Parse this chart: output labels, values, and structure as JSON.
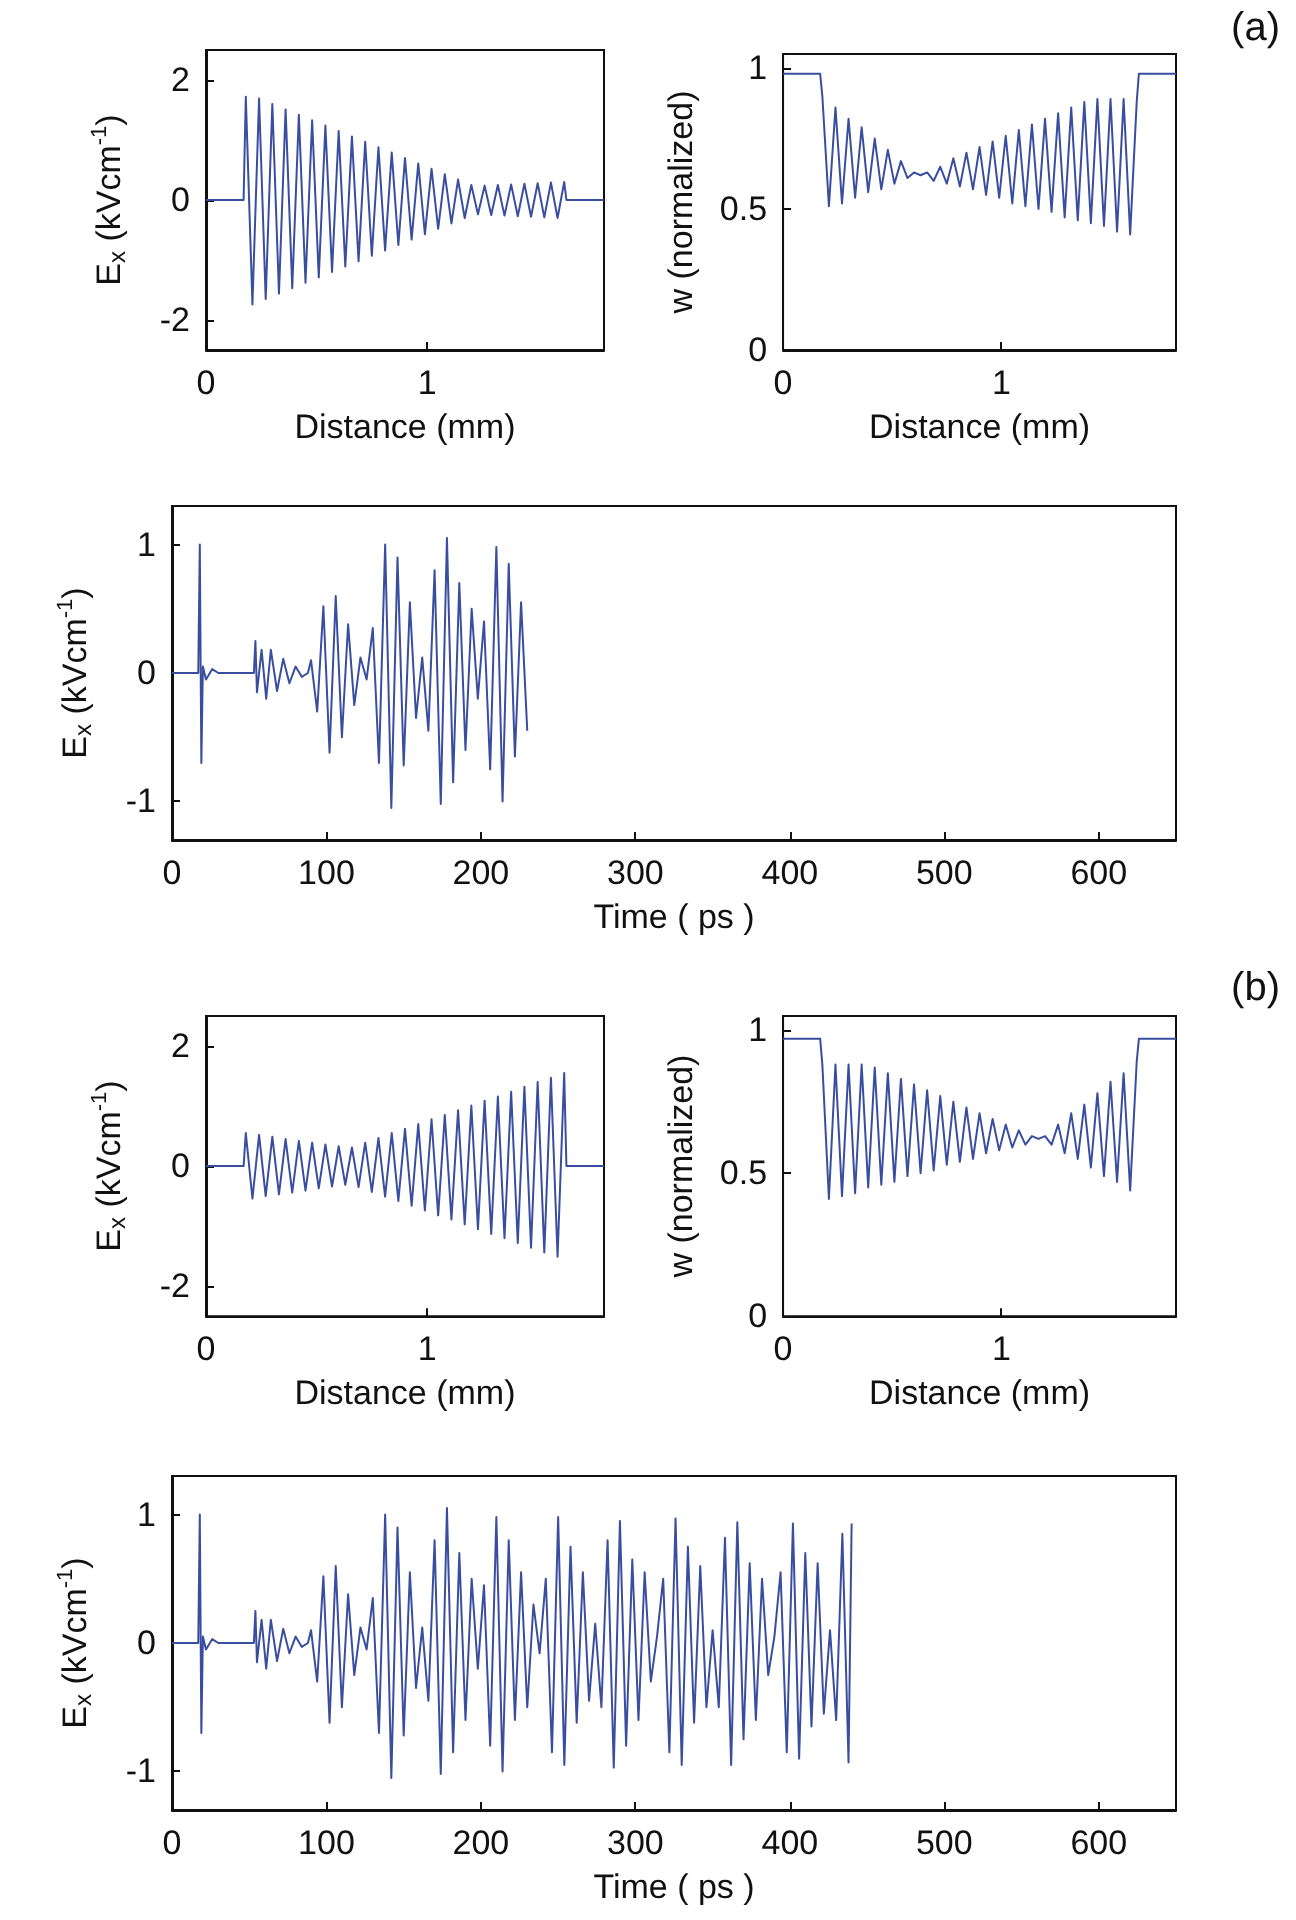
{
  "chart_data": [
    {
      "type": "line",
      "xlabel": "Distance (mm)",
      "ylabel": "E$_{x}$ (kVcm$^{-1}$)",
      "xlim": [
        0,
        1.8
      ],
      "xticks": [
        0,
        1
      ],
      "ylim": [
        -2.5,
        2.5
      ],
      "yticks": [
        -2,
        0,
        2
      ],
      "marker": "none",
      "x": [
        0,
        0.17,
        0.18,
        0.21,
        0.24,
        0.27,
        0.3,
        0.33,
        0.36,
        0.39,
        0.42,
        0.45,
        0.48,
        0.51,
        0.54,
        0.57,
        0.6,
        0.63,
        0.66,
        0.69,
        0.72,
        0.75,
        0.78,
        0.81,
        0.84,
        0.87,
        0.9,
        0.93,
        0.96,
        0.99,
        1.02,
        1.05,
        1.08,
        1.11,
        1.14,
        1.17,
        1.2,
        1.23,
        1.26,
        1.29,
        1.32,
        1.35,
        1.38,
        1.41,
        1.44,
        1.47,
        1.5,
        1.53,
        1.56,
        1.59,
        1.62,
        1.63,
        1.8
      ],
      "series": [
        {
          "color": "#3a4ea0",
          "values": [
            0,
            0,
            1.72,
            -1.74,
            1.69,
            -1.65,
            1.6,
            -1.56,
            1.51,
            -1.47,
            1.42,
            -1.38,
            1.33,
            -1.29,
            1.24,
            -1.2,
            1.15,
            -1.11,
            1.06,
            -1.02,
            0.97,
            -0.93,
            0.88,
            -0.84,
            0.79,
            -0.75,
            0.7,
            -0.66,
            0.61,
            -0.57,
            0.52,
            -0.48,
            0.43,
            -0.39,
            0.34,
            -0.3,
            0.25,
            -0.24,
            0.24,
            -0.25,
            0.25,
            -0.26,
            0.26,
            -0.27,
            0.27,
            -0.28,
            0.28,
            -0.29,
            0.29,
            -0.3,
            0.3,
            0,
            0
          ]
        }
      ]
    },
    {
      "type": "line",
      "xlabel": "Distance (mm)",
      "ylabel": "w (normalized)",
      "xlim": [
        0,
        1.8
      ],
      "xticks": [
        0,
        1
      ],
      "ylim": [
        0,
        1.05
      ],
      "yticks": [
        0,
        0.5,
        1
      ],
      "marker": "none",
      "annotations": [
        "(a)"
      ],
      "x": [
        0,
        0.17,
        0.18,
        0.21,
        0.24,
        0.27,
        0.3,
        0.33,
        0.36,
        0.39,
        0.42,
        0.45,
        0.48,
        0.51,
        0.54,
        0.57,
        0.6,
        0.63,
        0.66,
        0.69,
        0.72,
        0.75,
        0.78,
        0.81,
        0.84,
        0.87,
        0.9,
        0.93,
        0.96,
        0.99,
        1.02,
        1.05,
        1.08,
        1.11,
        1.14,
        1.17,
        1.2,
        1.23,
        1.26,
        1.29,
        1.32,
        1.35,
        1.38,
        1.41,
        1.44,
        1.47,
        1.5,
        1.53,
        1.56,
        1.59,
        1.62,
        1.63,
        1.8
      ],
      "series": [
        {
          "color": "#3a4ea0",
          "values": [
            0.98,
            0.98,
            0.9,
            0.51,
            0.86,
            0.52,
            0.82,
            0.54,
            0.79,
            0.56,
            0.75,
            0.57,
            0.71,
            0.59,
            0.67,
            0.61,
            0.63,
            0.62,
            0.63,
            0.6,
            0.65,
            0.59,
            0.68,
            0.58,
            0.7,
            0.57,
            0.72,
            0.55,
            0.74,
            0.54,
            0.76,
            0.52,
            0.78,
            0.51,
            0.8,
            0.5,
            0.82,
            0.49,
            0.84,
            0.47,
            0.86,
            0.46,
            0.88,
            0.45,
            0.89,
            0.44,
            0.89,
            0.42,
            0.89,
            0.41,
            0.88,
            0.98,
            0.98
          ]
        }
      ]
    },
    {
      "type": "line",
      "xlabel": "Time ( ps )",
      "ylabel": "E$_{x}$ (kVcm$^{-1}$)",
      "xlim": [
        0,
        650
      ],
      "xticks": [
        0,
        100,
        200,
        300,
        400,
        500,
        600
      ],
      "ylim": [
        -1.3,
        1.3
      ],
      "yticks": [
        -1,
        0,
        1
      ],
      "marker": "none",
      "x": [
        0,
        17,
        18,
        19,
        20,
        22,
        26,
        30,
        53,
        54,
        55,
        58,
        61,
        64,
        68,
        72,
        76,
        80,
        84,
        88,
        90,
        94,
        98,
        102,
        106,
        110,
        114,
        118,
        122,
        126,
        130,
        134,
        138,
        142,
        146,
        150,
        154,
        158,
        162,
        166,
        170,
        174,
        178,
        182,
        186,
        190,
        194,
        198,
        202,
        206,
        210,
        214,
        218,
        222,
        226,
        230
      ],
      "series": [
        {
          "color": "#3a4ea0",
          "values": [
            0,
            0,
            1.0,
            -0.7,
            0.05,
            -0.05,
            0.03,
            0,
            0,
            0.25,
            -0.15,
            0.18,
            -0.2,
            0.18,
            -0.14,
            0.11,
            -0.08,
            0.05,
            -0.03,
            0,
            0.1,
            -0.3,
            0.52,
            -0.62,
            0.6,
            -0.5,
            0.38,
            -0.25,
            0.12,
            -0.05,
            0.35,
            -0.7,
            1.0,
            -1.05,
            0.9,
            -0.72,
            0.55,
            -0.35,
            0.12,
            -0.45,
            0.8,
            -1.02,
            1.05,
            -0.85,
            0.7,
            -0.6,
            0.5,
            -0.2,
            0.4,
            -0.75,
            0.98,
            -1.0,
            0.85,
            -0.65,
            0.55,
            -0.45
          ]
        }
      ]
    },
    {
      "type": "line",
      "xlabel": "Distance (mm)",
      "ylabel": "E$_{x}$ (kVcm$^{-1}$)",
      "xlim": [
        0,
        1.8
      ],
      "xticks": [
        0,
        1
      ],
      "ylim": [
        -2.5,
        2.5
      ],
      "yticks": [
        -2,
        0,
        2
      ],
      "marker": "none",
      "x": [
        0,
        0.17,
        0.18,
        0.21,
        0.24,
        0.27,
        0.3,
        0.33,
        0.36,
        0.39,
        0.42,
        0.45,
        0.48,
        0.51,
        0.54,
        0.57,
        0.6,
        0.63,
        0.66,
        0.69,
        0.72,
        0.75,
        0.78,
        0.81,
        0.84,
        0.87,
        0.9,
        0.93,
        0.96,
        0.99,
        1.02,
        1.05,
        1.08,
        1.11,
        1.14,
        1.17,
        1.2,
        1.23,
        1.26,
        1.29,
        1.32,
        1.35,
        1.38,
        1.41,
        1.44,
        1.47,
        1.5,
        1.53,
        1.56,
        1.59,
        1.62,
        1.63,
        1.8
      ],
      "series": [
        {
          "color": "#3a4ea0",
          "values": [
            0,
            0,
            0.55,
            -0.54,
            0.52,
            -0.5,
            0.49,
            -0.47,
            0.45,
            -0.44,
            0.42,
            -0.41,
            0.39,
            -0.37,
            0.36,
            -0.34,
            0.33,
            -0.31,
            0.31,
            -0.35,
            0.39,
            -0.43,
            0.47,
            -0.51,
            0.55,
            -0.58,
            0.62,
            -0.66,
            0.7,
            -0.74,
            0.78,
            -0.82,
            0.85,
            -0.89,
            0.93,
            -0.97,
            1.01,
            -1.05,
            1.09,
            -1.13,
            1.16,
            -1.2,
            1.24,
            -1.28,
            1.32,
            -1.36,
            1.4,
            -1.44,
            1.47,
            -1.51,
            1.55,
            0,
            0
          ]
        }
      ]
    },
    {
      "type": "line",
      "xlabel": "Distance (mm)",
      "ylabel": "w (normalized)",
      "xlim": [
        0,
        1.8
      ],
      "xticks": [
        0,
        1
      ],
      "ylim": [
        0,
        1.05
      ],
      "yticks": [
        0,
        0.5,
        1
      ],
      "marker": "none",
      "annotations": [
        "(b)"
      ],
      "x": [
        0,
        0.17,
        0.18,
        0.21,
        0.24,
        0.27,
        0.3,
        0.33,
        0.36,
        0.39,
        0.42,
        0.45,
        0.48,
        0.51,
        0.54,
        0.57,
        0.6,
        0.63,
        0.66,
        0.69,
        0.72,
        0.75,
        0.78,
        0.81,
        0.84,
        0.87,
        0.9,
        0.93,
        0.96,
        0.99,
        1.02,
        1.05,
        1.08,
        1.11,
        1.14,
        1.17,
        1.2,
        1.23,
        1.26,
        1.29,
        1.32,
        1.35,
        1.38,
        1.41,
        1.44,
        1.47,
        1.5,
        1.53,
        1.56,
        1.59,
        1.62,
        1.63,
        1.8
      ],
      "series": [
        {
          "color": "#3a4ea0",
          "values": [
            0.97,
            0.97,
            0.88,
            0.41,
            0.88,
            0.42,
            0.88,
            0.43,
            0.88,
            0.45,
            0.87,
            0.46,
            0.85,
            0.47,
            0.83,
            0.49,
            0.81,
            0.5,
            0.79,
            0.51,
            0.77,
            0.53,
            0.75,
            0.54,
            0.73,
            0.55,
            0.71,
            0.57,
            0.69,
            0.58,
            0.67,
            0.59,
            0.65,
            0.6,
            0.63,
            0.62,
            0.63,
            0.6,
            0.67,
            0.57,
            0.71,
            0.55,
            0.74,
            0.52,
            0.78,
            0.49,
            0.82,
            0.47,
            0.85,
            0.44,
            0.89,
            0.97,
            0.97
          ]
        }
      ]
    },
    {
      "type": "line",
      "xlabel": "Time ( ps )",
      "ylabel": "E$_{x}$ (kVcm$^{-1}$)",
      "xlim": [
        0,
        650
      ],
      "xticks": [
        0,
        100,
        200,
        300,
        400,
        500,
        600
      ],
      "ylim": [
        -1.3,
        1.3
      ],
      "yticks": [
        -1,
        0,
        1
      ],
      "marker": "none",
      "x": [
        0,
        17,
        18,
        19,
        20,
        22,
        26,
        30,
        53,
        54,
        55,
        58,
        61,
        64,
        68,
        72,
        76,
        80,
        84,
        88,
        90,
        94,
        98,
        102,
        106,
        110,
        114,
        118,
        122,
        126,
        130,
        134,
        138,
        142,
        146,
        150,
        154,
        158,
        162,
        166,
        170,
        174,
        178,
        182,
        186,
        190,
        194,
        198,
        202,
        206,
        210,
        214,
        218,
        222,
        226,
        230,
        234,
        238,
        242,
        246,
        250,
        254,
        258,
        262,
        266,
        270,
        274,
        278,
        282,
        286,
        290,
        294,
        298,
        302,
        306,
        310,
        314,
        318,
        322,
        326,
        330,
        334,
        338,
        342,
        346,
        350,
        354,
        358,
        362,
        366,
        370,
        374,
        378,
        382,
        386,
        390,
        394,
        398,
        402,
        406,
        410,
        414,
        418,
        422,
        426,
        430,
        434,
        438,
        440
      ],
      "series": [
        {
          "color": "#3a4ea0",
          "values": [
            0,
            0,
            1.0,
            -0.7,
            0.05,
            -0.05,
            0.03,
            0,
            0,
            0.25,
            -0.15,
            0.18,
            -0.2,
            0.18,
            -0.14,
            0.11,
            -0.08,
            0.05,
            -0.03,
            0,
            0.1,
            -0.3,
            0.52,
            -0.62,
            0.6,
            -0.5,
            0.38,
            -0.25,
            0.12,
            -0.05,
            0.35,
            -0.7,
            1.0,
            -1.05,
            0.9,
            -0.72,
            0.55,
            -0.35,
            0.12,
            -0.45,
            0.8,
            -1.02,
            1.05,
            -0.85,
            0.7,
            -0.6,
            0.5,
            -0.2,
            0.45,
            -0.8,
            0.98,
            -1.0,
            0.8,
            -0.6,
            0.55,
            -0.5,
            0.3,
            -0.08,
            0.5,
            -0.85,
            0.98,
            -0.95,
            0.75,
            -0.62,
            0.55,
            -0.45,
            0.15,
            -0.5,
            0.8,
            -0.97,
            0.95,
            -0.8,
            0.65,
            -0.6,
            0.55,
            -0.3,
            0.05,
            0.5,
            -0.85,
            0.97,
            -0.95,
            0.75,
            -0.62,
            0.6,
            -0.5,
            0.1,
            -0.5,
            0.82,
            -0.95,
            0.94,
            -0.75,
            0.62,
            -0.6,
            0.5,
            -0.25,
            0.05,
            0.55,
            -0.85,
            0.93,
            -0.9,
            0.7,
            -0.65,
            0.62,
            -0.55,
            0.1,
            -0.6,
            0.85,
            -0.93,
            0.93
          ]
        }
      ]
    }
  ]
}
